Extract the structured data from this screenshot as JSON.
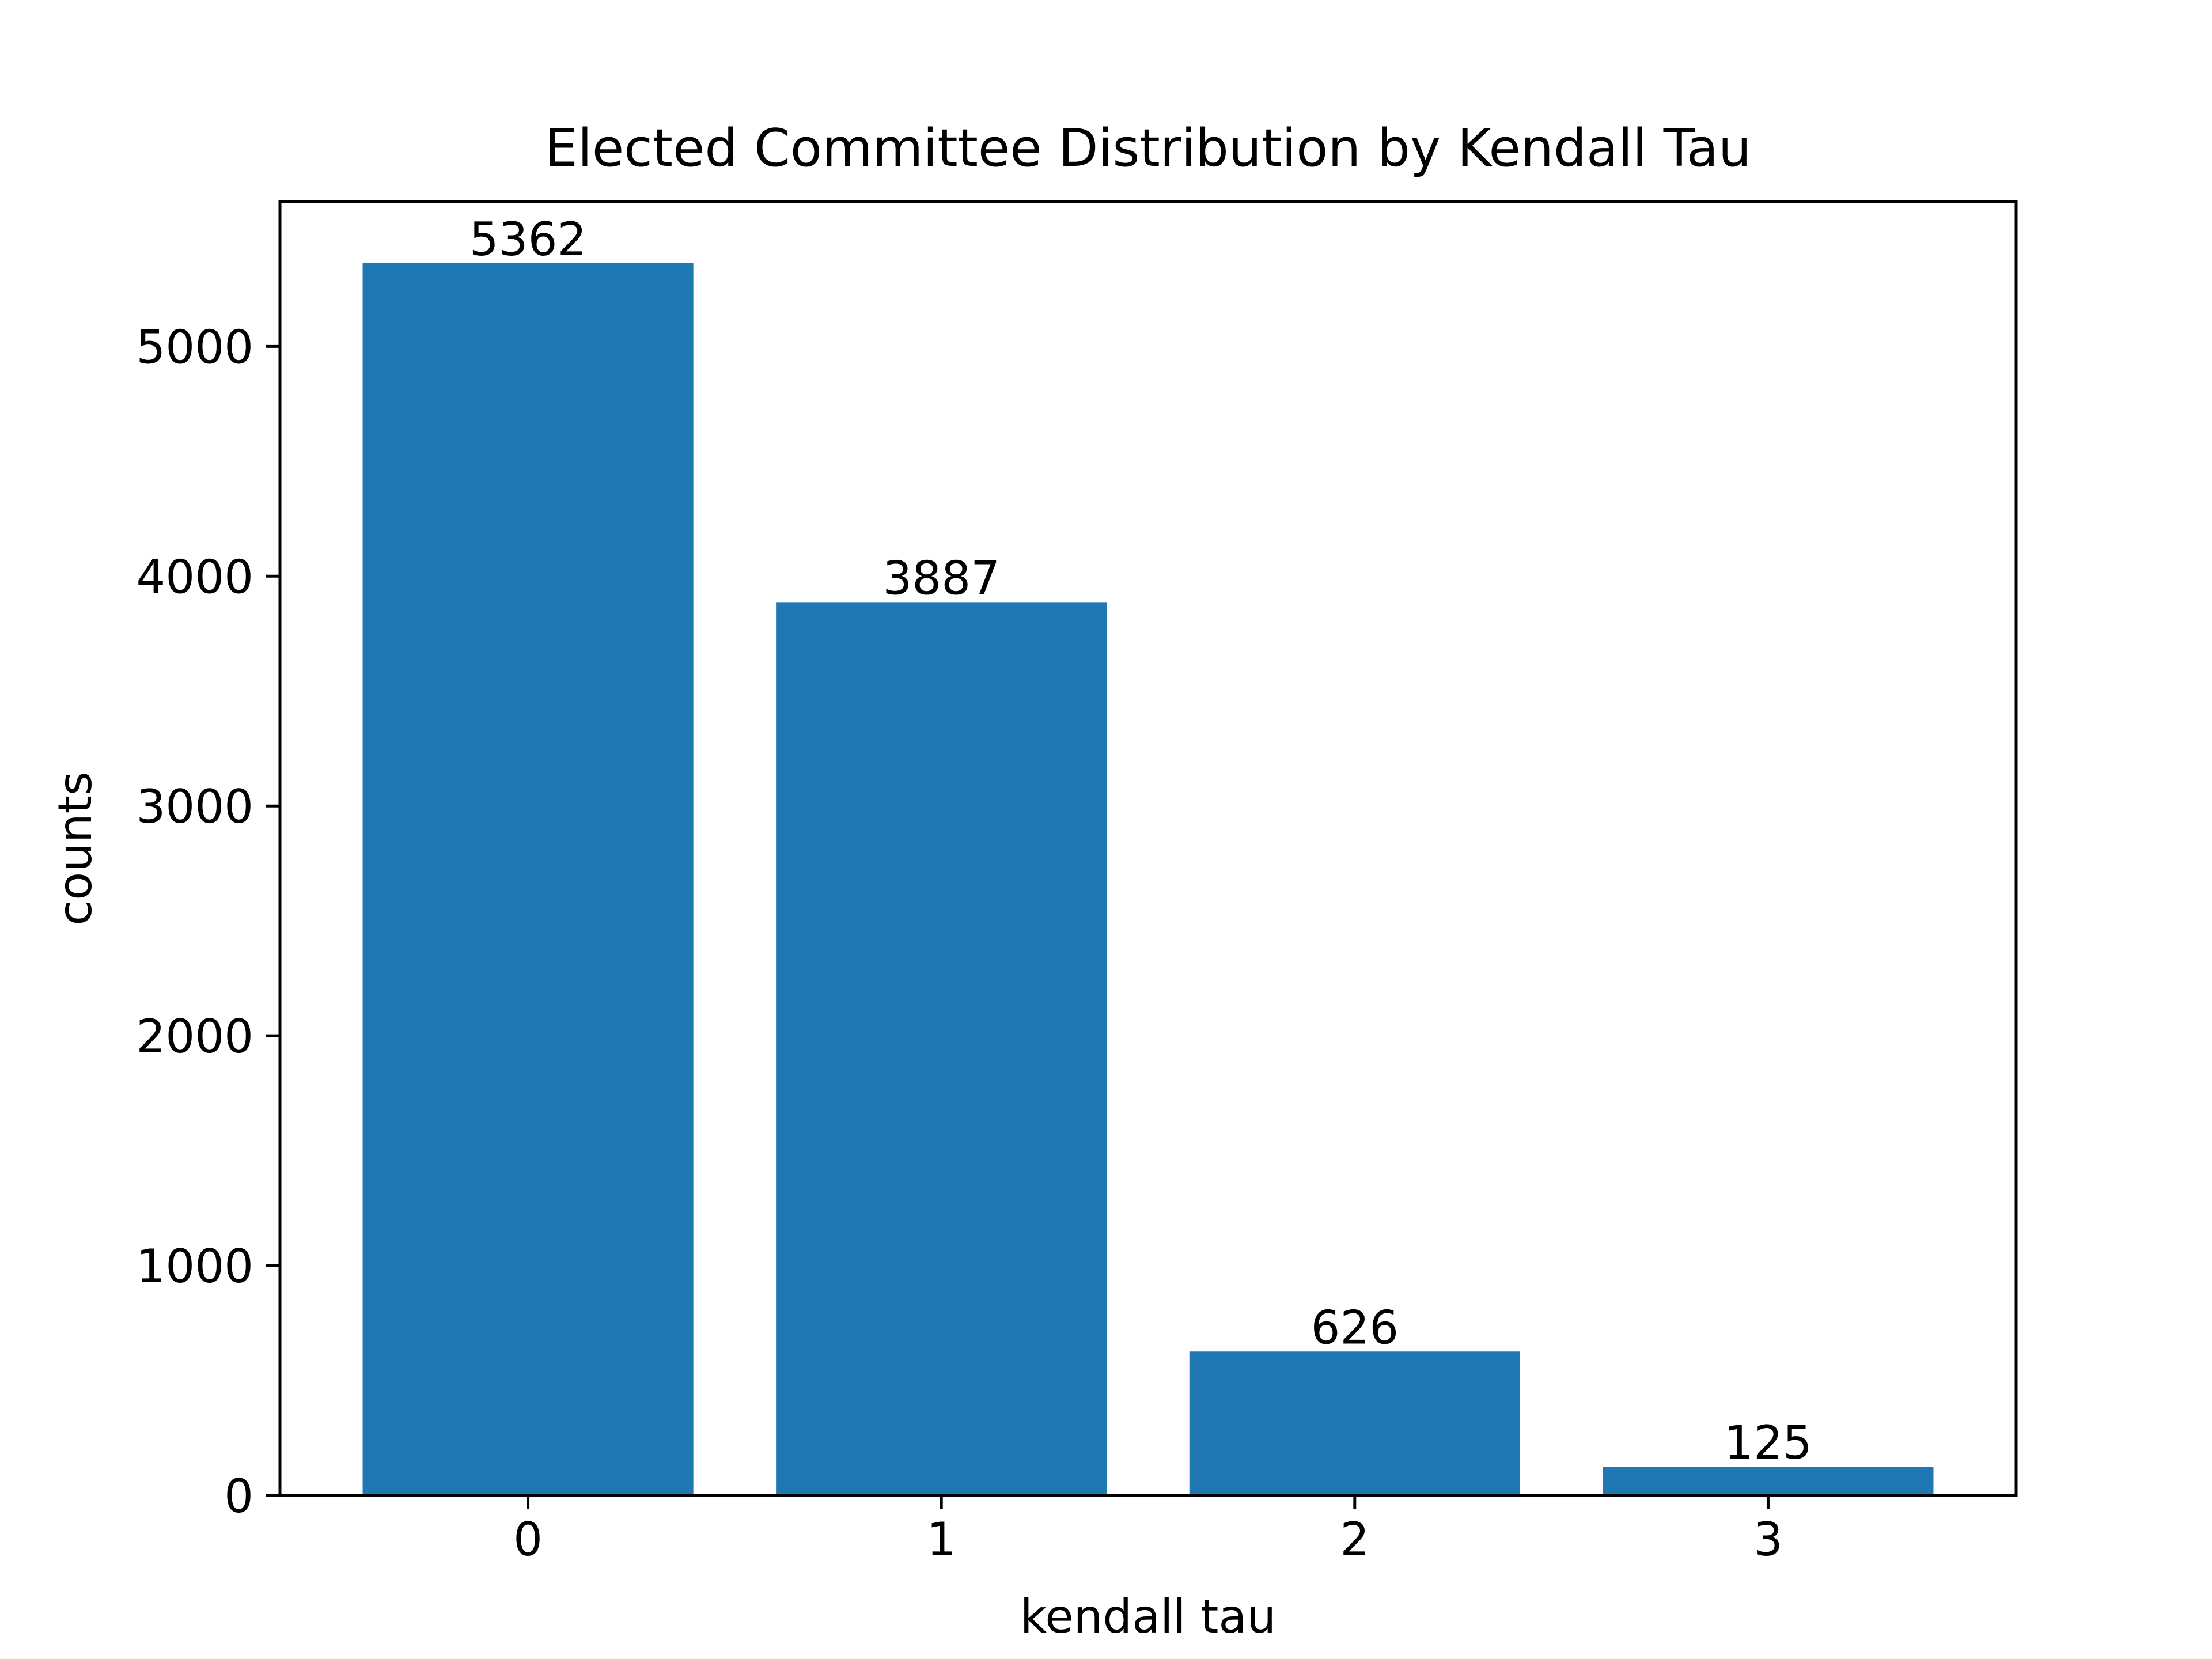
{
  "chart_data": {
    "type": "bar",
    "title": "Elected Committee Distribution by Kendall Tau",
    "xlabel": "kendall tau",
    "ylabel": "counts",
    "categories": [
      "0",
      "1",
      "2",
      "3"
    ],
    "values": [
      5362,
      3887,
      626,
      125
    ],
    "data_labels": [
      "5362",
      "3887",
      "626",
      "125"
    ],
    "ylim": [
      0,
      5630
    ],
    "xlim": [
      -0.6,
      3.6
    ],
    "yticks": [
      0,
      1000,
      2000,
      3000,
      4000,
      5000
    ],
    "ytick_labels": [
      "0",
      "1000",
      "2000",
      "3000",
      "4000",
      "5000"
    ],
    "grid": false,
    "bar_color": "#1f77b4"
  }
}
